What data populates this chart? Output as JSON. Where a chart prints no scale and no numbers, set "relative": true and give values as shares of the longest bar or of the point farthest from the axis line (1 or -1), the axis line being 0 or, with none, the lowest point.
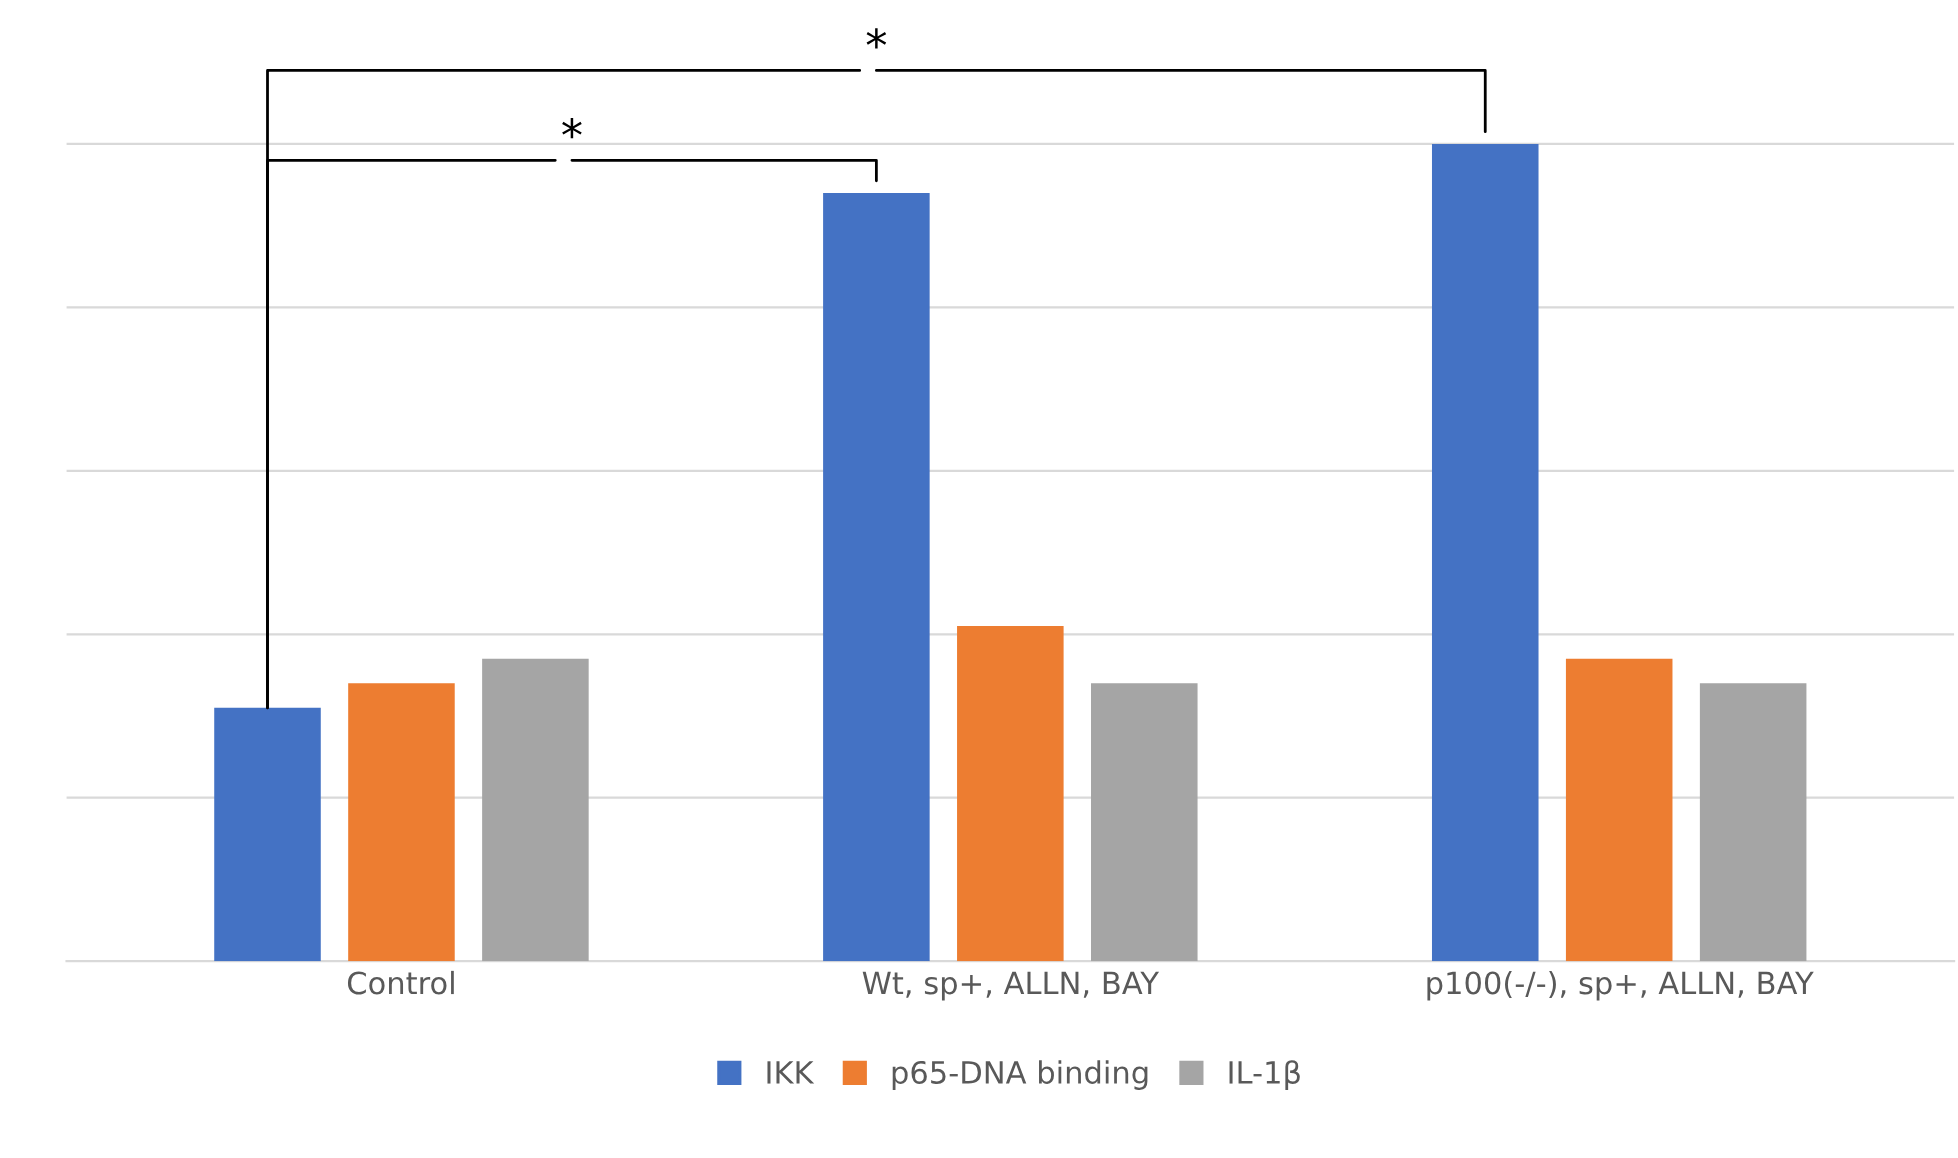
{
  "chart_data": {
    "type": "bar",
    "relative": true,
    "categories": [
      "Control",
      "Wt, sp+, ALLN, BAY",
      "p100(-/-), sp+, ALLN, BAY"
    ],
    "series": [
      {
        "name": "IKK",
        "color": "#4472c4",
        "values": [
          0.31,
          0.94,
          1
        ]
      },
      {
        "name": "p65-DNA binding",
        "color": "#ed7d31",
        "values": [
          0.34,
          0.41,
          0.37
        ]
      },
      {
        "name": "IL-1β",
        "color": "#a5a5a5",
        "values": [
          0.37,
          0.34,
          0.34
        ]
      }
    ],
    "annotations": [
      "*",
      "*"
    ],
    "grid": "y",
    "legend": "bottom"
  }
}
